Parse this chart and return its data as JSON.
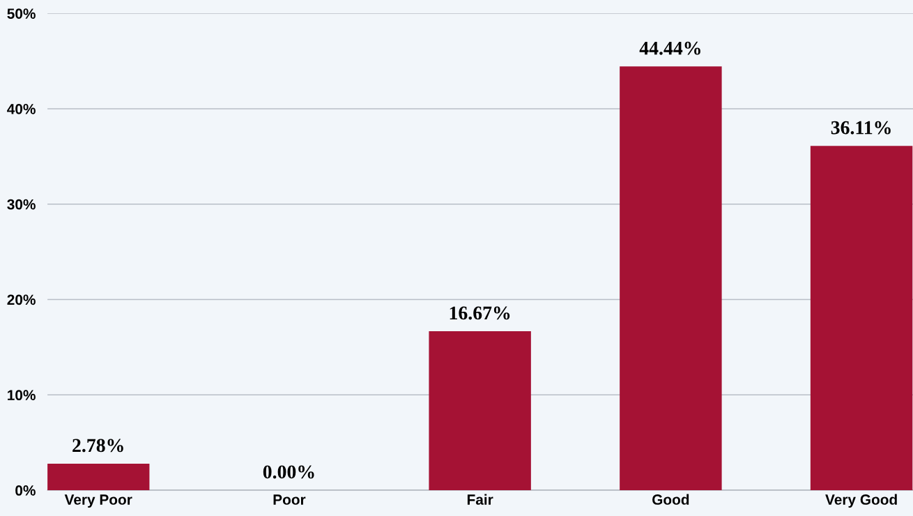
{
  "chart_data": {
    "type": "bar",
    "categories": [
      "Very Poor",
      "Poor",
      "Fair",
      "Good",
      "Very Good"
    ],
    "values": [
      2.78,
      0.0,
      16.67,
      44.44,
      36.11
    ],
    "value_labels": [
      "2.78%",
      "0.00%",
      "16.67%",
      "44.44%",
      "36.11%"
    ],
    "color": "#a51234",
    "ylim": [
      0,
      50
    ],
    "yticks": [
      {
        "value": 0,
        "label": "0%"
      },
      {
        "value": 10,
        "label": "10%"
      },
      {
        "value": 20,
        "label": "20%"
      },
      {
        "value": 30,
        "label": "30%"
      },
      {
        "value": 40,
        "label": "40%"
      },
      {
        "value": 50,
        "label": "50%"
      }
    ],
    "grid": "y"
  }
}
